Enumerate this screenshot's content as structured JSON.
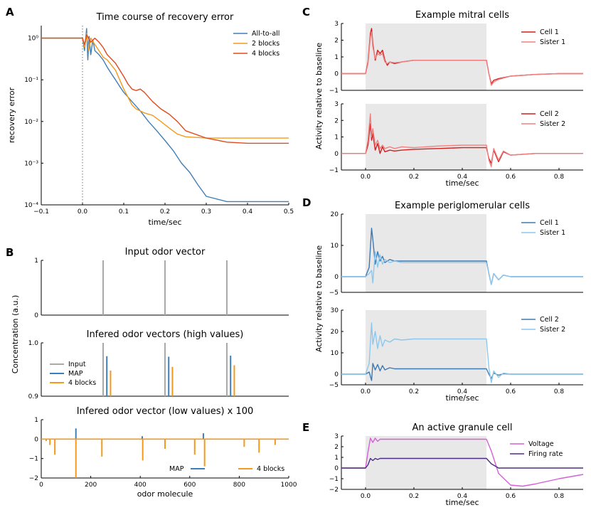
{
  "colors": {
    "blue": "#3f7fb7",
    "orange": "#f39a1c",
    "red_orange": "#e04b1e",
    "gray": "#a9a9a9",
    "shade": "#e8e8e8",
    "red_dark": "#d41e1e",
    "red_light": "#ef8080",
    "pg_dark": "#3f79b1",
    "pg_light": "#8cc7ee",
    "gran_violet": "#d65fd6",
    "gran_purple": "#4b2e83"
  },
  "panel_letters": [
    "A",
    "B",
    "C",
    "D",
    "E"
  ],
  "chart_data": [
    {
      "id": "A",
      "type": "line",
      "title": "Time course of recovery error",
      "xlabel": "time/sec",
      "ylabel": "recovery error",
      "xlim": [
        -0.1,
        0.5
      ],
      "ylim_log10": [
        -4,
        0.3
      ],
      "xticks": [
        "−0.1",
        "0.0",
        "0.1",
        "0.2",
        "0.3",
        "0.4",
        "0.5"
      ],
      "yticks": [
        "10⁻⁴",
        "10⁻³",
        "10⁻²",
        "10⁻¹",
        "10⁰"
      ],
      "legend": [
        "All-to-all",
        "2 blocks",
        "4 blocks"
      ],
      "series": [
        {
          "name": "All-to-all",
          "x": [
            -0.1,
            0,
            0.005,
            0.01,
            0.013,
            0.016,
            0.02,
            0.025,
            0.03,
            0.04,
            0.05,
            0.06,
            0.07,
            0.08,
            0.09,
            0.1,
            0.12,
            0.14,
            0.16,
            0.18,
            0.2,
            0.22,
            0.24,
            0.26,
            0.28,
            0.3,
            0.35,
            0.4,
            0.45,
            0.5
          ],
          "y": [
            1,
            1,
            0.5,
            1.7,
            0.3,
            1.1,
            0.4,
            0.9,
            0.5,
            0.4,
            0.3,
            0.2,
            0.14,
            0.1,
            0.07,
            0.05,
            0.03,
            0.018,
            0.01,
            0.006,
            0.0035,
            0.002,
            0.001,
            0.0006,
            0.0003,
            0.00016,
            0.00012,
            0.00012,
            0.00012,
            0.00012
          ]
        },
        {
          "name": "2 blocks",
          "x": [
            -0.1,
            0,
            0.005,
            0.01,
            0.015,
            0.02,
            0.03,
            0.04,
            0.05,
            0.06,
            0.08,
            0.1,
            0.12,
            0.13,
            0.15,
            0.17,
            0.19,
            0.21,
            0.23,
            0.25,
            0.3,
            0.35,
            0.4,
            0.45,
            0.5
          ],
          "y": [
            1,
            1,
            0.6,
            1.3,
            0.5,
            1,
            0.7,
            0.5,
            0.35,
            0.3,
            0.17,
            0.06,
            0.025,
            0.02,
            0.016,
            0.014,
            0.01,
            0.007,
            0.005,
            0.0043,
            0.004,
            0.004,
            0.004,
            0.004,
            0.004
          ]
        },
        {
          "name": "4 blocks",
          "x": [
            -0.1,
            0,
            0.005,
            0.01,
            0.02,
            0.03,
            0.04,
            0.05,
            0.06,
            0.08,
            0.1,
            0.11,
            0.12,
            0.13,
            0.14,
            0.15,
            0.17,
            0.19,
            0.21,
            0.23,
            0.25,
            0.3,
            0.35,
            0.4,
            0.45,
            0.5
          ],
          "y": [
            1,
            1,
            0.7,
            1.2,
            0.8,
            1,
            0.8,
            0.6,
            0.4,
            0.25,
            0.12,
            0.08,
            0.06,
            0.055,
            0.06,
            0.05,
            0.03,
            0.02,
            0.015,
            0.01,
            0.006,
            0.004,
            0.0032,
            0.003,
            0.003,
            0.003
          ]
        }
      ]
    },
    {
      "id": "B1",
      "type": "bar",
      "title": "Input odor vector",
      "ylim": [
        0,
        1
      ],
      "yticks": [
        "0",
        "1"
      ],
      "series": [
        {
          "name": "Input",
          "x": [
            250,
            500,
            750
          ],
          "values": [
            1,
            1,
            1
          ]
        }
      ]
    },
    {
      "id": "B2",
      "type": "bar",
      "title": "Infered odor vectors (high values)",
      "ylim": [
        0.9,
        1.0
      ],
      "yticks": [
        "0.9",
        "1.0"
      ],
      "legend": [
        "Input",
        "MAP",
        "4 blocks"
      ],
      "series": [
        {
          "name": "Input",
          "x": [
            250,
            500,
            750
          ],
          "values": [
            1.0,
            1.0,
            1.0
          ]
        },
        {
          "name": "MAP",
          "x": [
            265,
            515,
            765
          ],
          "values": [
            0.975,
            0.974,
            0.976
          ]
        },
        {
          "name": "4 blocks",
          "x": [
            280,
            530,
            780
          ],
          "values": [
            0.948,
            0.955,
            0.958
          ]
        }
      ]
    },
    {
      "id": "B3",
      "type": "bar",
      "title": "Infered odor vector (low values) x 100",
      "xlabel": "odor molecule",
      "xlim": [
        0,
        1000
      ],
      "ylim": [
        -2,
        1
      ],
      "xticks": [
        "0",
        "200",
        "400",
        "600",
        "800",
        "1000"
      ],
      "yticks": [
        "−2",
        "−1",
        "0",
        "1"
      ],
      "legend": [
        "MAP",
        "4 blocks"
      ],
      "series": [
        {
          "name": "MAP",
          "x": [
            140,
            408,
            655
          ],
          "values": [
            0.55,
            0.15,
            0.3
          ]
        },
        {
          "name": "4 blocks",
          "x": [
            20,
            35,
            55,
            140,
            245,
            410,
            500,
            620,
            660,
            820,
            880,
            945
          ],
          "values": [
            -0.1,
            -0.3,
            -0.8,
            -2.0,
            -0.9,
            -1.1,
            -0.5,
            -0.8,
            -1.4,
            -0.4,
            -0.7,
            -0.3
          ]
        }
      ]
    },
    {
      "id": "C1",
      "type": "line",
      "title": "Example mitral cells",
      "xlim": [
        -0.1,
        0.9
      ],
      "ylim": [
        -1,
        3
      ],
      "yticks": [
        "−1",
        "0",
        "1",
        "2",
        "3"
      ],
      "shade_x": [
        0.0,
        0.5
      ],
      "legend": [
        "Cell 1",
        "Sister 1"
      ],
      "series": [
        {
          "name": "Cell 1",
          "x": [
            -0.1,
            0,
            0.01,
            0.02,
            0.025,
            0.03,
            0.04,
            0.05,
            0.06,
            0.07,
            0.08,
            0.09,
            0.1,
            0.12,
            0.15,
            0.2,
            0.3,
            0.4,
            0.5,
            0.51,
            0.52,
            0.53,
            0.55,
            0.6,
            0.7,
            0.8,
            0.9
          ],
          "y": [
            0,
            0,
            0.7,
            2.4,
            2.7,
            1.8,
            0.8,
            1.4,
            1.2,
            1.4,
            0.8,
            0.5,
            0.7,
            0.6,
            0.7,
            0.8,
            0.8,
            0.8,
            0.8,
            0,
            -0.6,
            -0.4,
            -0.3,
            -0.15,
            -0.05,
            0,
            0
          ]
        },
        {
          "name": "Sister 1",
          "x": [
            -0.1,
            0,
            0.01,
            0.02,
            0.025,
            0.03,
            0.04,
            0.05,
            0.06,
            0.07,
            0.08,
            0.09,
            0.1,
            0.12,
            0.15,
            0.2,
            0.3,
            0.4,
            0.5,
            0.51,
            0.52,
            0.53,
            0.55,
            0.6,
            0.7,
            0.8,
            0.9
          ],
          "y": [
            0,
            0,
            0.6,
            2.2,
            2.5,
            1.6,
            0.9,
            1.2,
            1.1,
            1.2,
            0.7,
            0.6,
            0.7,
            0.65,
            0.7,
            0.8,
            0.8,
            0.8,
            0.8,
            0,
            -0.7,
            -0.5,
            -0.35,
            -0.15,
            -0.05,
            0,
            0
          ]
        }
      ]
    },
    {
      "id": "C2",
      "type": "line",
      "xlabel": "time/sec",
      "xlim": [
        -0.1,
        0.9
      ],
      "ylim": [
        -1,
        3
      ],
      "xticks": [
        "0.0",
        "0.2",
        "0.4",
        "0.6",
        "0.8"
      ],
      "yticks": [
        "−1",
        "0",
        "1",
        "2",
        "3"
      ],
      "shade_x": [
        0.0,
        0.5
      ],
      "legend": [
        "Cell 2",
        "Sister 2"
      ],
      "series": [
        {
          "name": "Cell 2",
          "x": [
            -0.1,
            0,
            0.01,
            0.02,
            0.025,
            0.03,
            0.04,
            0.05,
            0.06,
            0.07,
            0.08,
            0.1,
            0.12,
            0.15,
            0.2,
            0.3,
            0.4,
            0.5,
            0.51,
            0.52,
            0.53,
            0.55,
            0.57,
            0.6,
            0.7,
            0.8,
            0.9
          ],
          "y": [
            0,
            0,
            0.5,
            1.8,
            0.8,
            1.2,
            0.2,
            0.6,
            0.0,
            0.4,
            0.1,
            0.2,
            0.15,
            0.2,
            0.25,
            0.3,
            0.35,
            0.35,
            -0.3,
            -0.6,
            0.2,
            -0.5,
            0.1,
            -0.1,
            0,
            0,
            0
          ]
        },
        {
          "name": "Sister 2",
          "x": [
            -0.1,
            0,
            0.01,
            0.02,
            0.025,
            0.03,
            0.04,
            0.05,
            0.06,
            0.07,
            0.08,
            0.1,
            0.12,
            0.15,
            0.2,
            0.3,
            0.4,
            0.5,
            0.51,
            0.52,
            0.53,
            0.55,
            0.57,
            0.6,
            0.7,
            0.8,
            0.9
          ],
          "y": [
            0,
            0,
            0.8,
            2.4,
            1.0,
            1.5,
            0.5,
            0.8,
            0.3,
            0.5,
            0.3,
            0.4,
            0.3,
            0.4,
            0.35,
            0.45,
            0.5,
            0.5,
            -0.4,
            -0.8,
            0.3,
            -0.4,
            0.15,
            -0.1,
            0,
            0,
            0
          ]
        }
      ]
    },
    {
      "id": "D1",
      "type": "line",
      "title": "Example periglomerular cells",
      "xlim": [
        -0.1,
        0.9
      ],
      "ylim": [
        -5,
        20
      ],
      "yticks": [
        "−5",
        "0",
        "10",
        "20"
      ],
      "shade_x": [
        0.0,
        0.5
      ],
      "legend": [
        "Cell 1",
        "Sister 1"
      ],
      "series": [
        {
          "name": "Cell 1",
          "x": [
            -0.1,
            0,
            0.015,
            0.025,
            0.03,
            0.04,
            0.05,
            0.06,
            0.07,
            0.08,
            0.1,
            0.12,
            0.15,
            0.2,
            0.3,
            0.4,
            0.5,
            0.51,
            0.52,
            0.53,
            0.55,
            0.57,
            0.6,
            0.7,
            0.8,
            0.9
          ],
          "y": [
            0,
            0,
            3,
            15.5,
            12,
            4,
            8,
            5,
            6.5,
            4.5,
            5.5,
            5,
            5,
            5,
            5,
            5,
            5,
            1,
            -2.5,
            1,
            -1,
            0.5,
            0,
            0,
            0,
            0
          ]
        },
        {
          "name": "Sister 1",
          "x": [
            -0.1,
            0,
            0.015,
            0.025,
            0.03,
            0.04,
            0.05,
            0.06,
            0.07,
            0.08,
            0.1,
            0.12,
            0.15,
            0.2,
            0.3,
            0.4,
            0.5,
            0.51,
            0.52,
            0.53,
            0.55,
            0.57,
            0.6,
            0.7,
            0.8,
            0.9
          ],
          "y": [
            0,
            0,
            1,
            2,
            -2,
            8,
            3,
            7,
            4,
            5.5,
            4.5,
            5,
            4.5,
            4.5,
            4.5,
            4.5,
            4.5,
            1,
            -2.5,
            1,
            -1,
            0.5,
            0,
            0,
            0,
            0
          ]
        }
      ]
    },
    {
      "id": "D2",
      "type": "line",
      "xlabel": "time/sec",
      "xlim": [
        -0.1,
        0.9
      ],
      "ylim": [
        -5,
        30
      ],
      "xticks": [
        "0.0",
        "0.2",
        "0.4",
        "0.6",
        "0.8"
      ],
      "yticks": [
        "−5",
        "0",
        "10",
        "20",
        "30"
      ],
      "shade_x": [
        0.0,
        0.5
      ],
      "legend": [
        "Cell 2",
        "Sister 2"
      ],
      "series": [
        {
          "name": "Cell 2",
          "x": [
            -0.1,
            0,
            0.015,
            0.025,
            0.03,
            0.04,
            0.05,
            0.06,
            0.07,
            0.08,
            0.1,
            0.12,
            0.15,
            0.2,
            0.3,
            0.4,
            0.5,
            0.51,
            0.52,
            0.53,
            0.55,
            0.57,
            0.6,
            0.7,
            0.8,
            0.9
          ],
          "y": [
            0,
            0,
            1,
            -3,
            5,
            2,
            4.5,
            1.5,
            4,
            2,
            3,
            2.5,
            2.5,
            2.5,
            2.5,
            2.5,
            2.5,
            0,
            -2,
            0.5,
            -0.5,
            0.2,
            0,
            0,
            0,
            0
          ]
        },
        {
          "name": "Sister 2",
          "x": [
            -0.1,
            0,
            0.015,
            0.025,
            0.03,
            0.04,
            0.05,
            0.06,
            0.07,
            0.08,
            0.1,
            0.12,
            0.15,
            0.2,
            0.3,
            0.4,
            0.5,
            0.51,
            0.52,
            0.53,
            0.55,
            0.57,
            0.6,
            0.7,
            0.8,
            0.9
          ],
          "y": [
            0,
            0,
            5,
            24,
            14,
            20,
            12,
            18,
            13,
            16,
            15,
            16.5,
            16,
            16.5,
            16.5,
            16.5,
            16.5,
            3,
            -4,
            1.5,
            -1.5,
            0.5,
            0,
            0,
            0,
            0
          ]
        }
      ]
    },
    {
      "id": "E",
      "type": "line",
      "title": "An active granule cell",
      "xlabel": "time/sec",
      "xlim": [
        -0.1,
        0.9
      ],
      "ylim": [
        -2,
        3
      ],
      "xticks": [
        "0.0",
        "0.2",
        "0.4",
        "0.6",
        "0.8"
      ],
      "yticks": [
        "−2",
        "−1",
        "0",
        "1",
        "2",
        "3"
      ],
      "shade_x": [
        0.0,
        0.5
      ],
      "legend": [
        "Voltage",
        "Firing rate"
      ],
      "series": [
        {
          "name": "Voltage",
          "x": [
            -0.1,
            0,
            0.01,
            0.02,
            0.03,
            0.04,
            0.05,
            0.06,
            0.08,
            0.1,
            0.2,
            0.3,
            0.4,
            0.5,
            0.52,
            0.55,
            0.6,
            0.65,
            0.7,
            0.8,
            0.9
          ],
          "y": [
            0,
            0,
            1.5,
            2.8,
            2.4,
            2.8,
            2.5,
            2.7,
            2.7,
            2.7,
            2.7,
            2.7,
            2.7,
            2.7,
            1.6,
            -0.5,
            -1.6,
            -1.7,
            -1.5,
            -1,
            -0.6
          ]
        },
        {
          "name": "Firing rate",
          "x": [
            -0.1,
            0,
            0.01,
            0.02,
            0.03,
            0.04,
            0.05,
            0.06,
            0.1,
            0.2,
            0.3,
            0.4,
            0.5,
            0.52,
            0.55,
            0.6,
            0.7,
            0.9
          ],
          "y": [
            0,
            0,
            0.3,
            0.9,
            0.7,
            0.9,
            0.8,
            0.9,
            0.9,
            0.9,
            0.9,
            0.9,
            0.9,
            0.4,
            0,
            0,
            0,
            0
          ]
        }
      ]
    }
  ],
  "shared_labels": {
    "B_ylabel": "Concentration (a.u.)",
    "C_ylabel": "Activity relative to baseline",
    "D_ylabel": "Activity relative to baseline"
  }
}
